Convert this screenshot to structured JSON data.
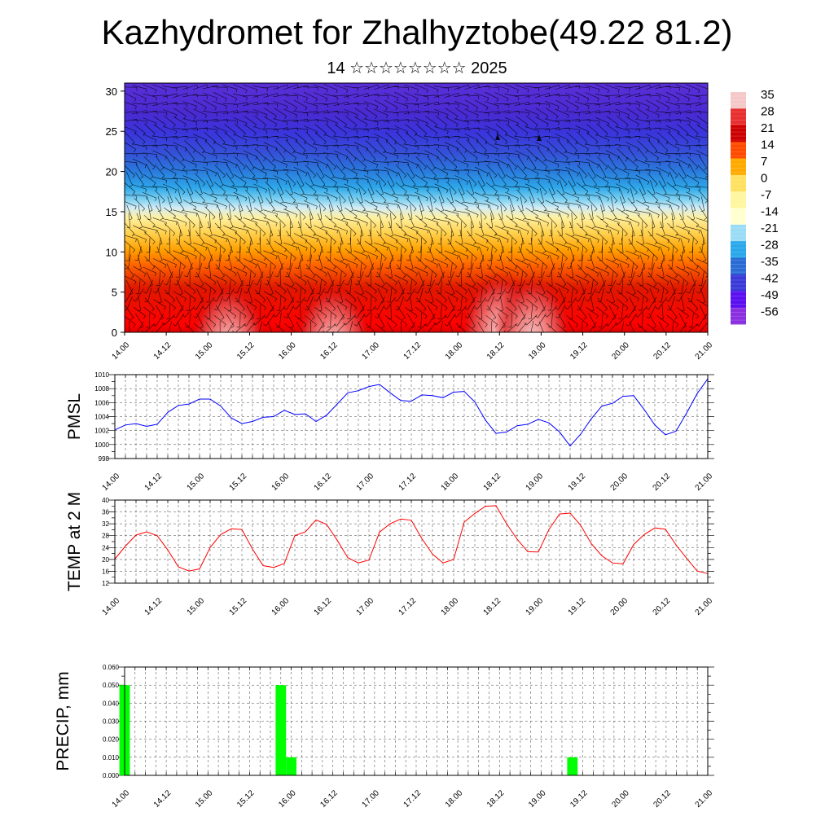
{
  "title": "Kazhydromet for Zhalhyztobe(49.22 81.2)",
  "subtitle": "14 ☆☆☆☆☆☆☆☆ 2025",
  "time_labels": [
    "14.00",
    "14.12",
    "15.00",
    "15.12",
    "16.00",
    "16.12",
    "17.00",
    "17.12",
    "18.00",
    "18.12",
    "19.00",
    "19.12",
    "20.00",
    "20.12",
    "21.00"
  ],
  "chart_data": [
    {
      "type": "heatmap",
      "name": "",
      "x_tick_labels": [
        "14.00",
        "14.12",
        "15.00",
        "15.12",
        "16.00",
        "16.12",
        "17.00",
        "17.12",
        "18.00",
        "18.12",
        "19.00",
        "19.12",
        "20.00",
        "20.12",
        "21.00"
      ],
      "y_tick_labels": [
        "0",
        "5",
        "10",
        "15",
        "20",
        "25",
        "30"
      ],
      "ylim": [
        0,
        31
      ],
      "colorbar_labels": [
        "35",
        "28",
        "21",
        "14",
        "7",
        "0",
        "-7",
        "-14",
        "-21",
        "-28",
        "-35",
        "-42",
        "-49",
        "-56"
      ],
      "colorscale": [
        "#f5c8c8",
        "#e83030",
        "#cc0000",
        "#ff4a00",
        "#ffaa00",
        "#ffe060",
        "#fff6a0",
        "#ffffd0",
        "#9adcf5",
        "#2aa8ea",
        "#2a6cd4",
        "#3a3ad8",
        "#5a10f0",
        "#8a30e0"
      ],
      "value_range": [
        -60,
        40
      ],
      "features": "Temperature shading by hour and level with wind barbs overlaid; warm colors below level 10, cold colors above level 20",
      "warm_cores": [
        {
          "x": 9.0,
          "level": 3
        },
        {
          "x": 9.8,
          "level": 2.5
        },
        {
          "x": 5.0,
          "level": 1.5
        },
        {
          "x": 2.5,
          "level": 1.5
        }
      ]
    },
    {
      "type": "line",
      "ylabel": "PMSL",
      "ylim": [
        998,
        1010
      ],
      "y_ticks": [
        998,
        1000,
        1002,
        1004,
        1006,
        1008,
        1010
      ],
      "color": "#0000ff",
      "x_tick_labels": [
        "14.00",
        "14.12",
        "15.00",
        "15.12",
        "16.00",
        "16.12",
        "17.00",
        "17.12",
        "18.00",
        "18.12",
        "19.00",
        "19.12",
        "20.00",
        "20.12",
        "21.00"
      ],
      "x": [
        0,
        0.25,
        0.5,
        0.75,
        1,
        1.25,
        1.5,
        1.75,
        2,
        2.25,
        2.5,
        2.75,
        3,
        3.25,
        3.5,
        3.75,
        4,
        4.25,
        4.5,
        4.75,
        5,
        5.25,
        5.5,
        5.75,
        6,
        6.25,
        6.5,
        6.75,
        7,
        7.25,
        7.5,
        7.75,
        8,
        8.25,
        8.5,
        8.75,
        9,
        9.25,
        9.5,
        9.75,
        10,
        10.25,
        10.5,
        10.75,
        11,
        11.25,
        11.5,
        11.75,
        12,
        12.25,
        12.5,
        12.75,
        13,
        13.25,
        13.5,
        13.75,
        14
      ],
      "values": [
        1002.1,
        1002.8,
        1003.0,
        1002.6,
        1002.9,
        1004.6,
        1005.6,
        1005.8,
        1006.5,
        1006.5,
        1005.5,
        1003.8,
        1003.0,
        1003.3,
        1003.9,
        1004.0,
        1004.9,
        1004.3,
        1004.4,
        1003.3,
        1004.2,
        1005.8,
        1007.4,
        1007.7,
        1008.3,
        1008.6,
        1007.4,
        1006.3,
        1006.2,
        1007.1,
        1007.0,
        1006.7,
        1007.5,
        1007.6,
        1006.1,
        1003.5,
        1001.6,
        1001.8,
        1002.7,
        1002.9,
        1003.6,
        1003.1,
        1001.8,
        999.8,
        1001.5,
        1003.7,
        1005.5,
        1005.9,
        1006.9,
        1007.0,
        1005.0,
        1002.8,
        1001.4,
        1001.9,
        1004.5,
        1007.3,
        1009.4
      ]
    },
    {
      "type": "line",
      "ylabel": "TEMP at 2 M",
      "ylim": [
        12,
        40
      ],
      "y_ticks": [
        12,
        16,
        20,
        24,
        28,
        32,
        36,
        40
      ],
      "color": "#ff0000",
      "x_tick_labels": [
        "14.00",
        "14.12",
        "15.00",
        "15.12",
        "16.00",
        "16.12",
        "17.00",
        "17.12",
        "18.00",
        "18.12",
        "19.00",
        "19.12",
        "20.00",
        "20.12",
        "21.00"
      ],
      "x": [
        0,
        0.25,
        0.5,
        0.75,
        1,
        1.25,
        1.5,
        1.75,
        2,
        2.25,
        2.5,
        2.75,
        3,
        3.25,
        3.5,
        3.75,
        4,
        4.25,
        4.5,
        4.75,
        5,
        5.25,
        5.5,
        5.75,
        6,
        6.25,
        6.5,
        6.75,
        7,
        7.25,
        7.5,
        7.75,
        8,
        8.25,
        8.5,
        8.75,
        9,
        9.25,
        9.5,
        9.75,
        10,
        10.25,
        10.5,
        10.75,
        11,
        11.25,
        11.5,
        11.75,
        12,
        12.25,
        12.5,
        12.75,
        13,
        13.25,
        13.5,
        13.75,
        14
      ],
      "values": [
        20.1,
        24.5,
        28.2,
        29.3,
        28.0,
        23.2,
        17.5,
        16.1,
        16.8,
        24.0,
        28.4,
        30.3,
        30.1,
        23.5,
        17.9,
        17.3,
        18.6,
        28.0,
        29.3,
        33.3,
        31.8,
        26.5,
        20.6,
        18.8,
        19.8,
        29.2,
        32.0,
        33.6,
        33.2,
        27.0,
        21.8,
        18.8,
        20.0,
        32.6,
        35.5,
        37.9,
        38.1,
        32.0,
        26.8,
        22.6,
        22.5,
        30.1,
        35.3,
        35.6,
        31.5,
        25.3,
        21.2,
        18.8,
        18.5,
        25.0,
        28.4,
        30.6,
        30.2,
        24.9,
        20.4,
        16.1,
        15.2
      ]
    },
    {
      "type": "bar",
      "ylabel": "PRECIP, mm",
      "ylim": [
        0,
        0.06
      ],
      "y_tick_labels": [
        "0.000",
        "0.010",
        "0.020",
        "0.030",
        "0.040",
        "0.050",
        "0.060"
      ],
      "color": "#00ff00",
      "x_tick_labels": [
        "14.00",
        "14.12",
        "15.00",
        "15.12",
        "16.00",
        "16.12",
        "17.00",
        "17.12",
        "18.00",
        "18.12",
        "19.00",
        "19.12",
        "20.00",
        "20.12",
        "21.00"
      ],
      "bars": [
        {
          "x": 0.0,
          "value": 0.05
        },
        {
          "x": 3.75,
          "value": 0.05
        },
        {
          "x": 4.0,
          "value": 0.01
        },
        {
          "x": 10.75,
          "value": 0.01
        }
      ]
    }
  ]
}
